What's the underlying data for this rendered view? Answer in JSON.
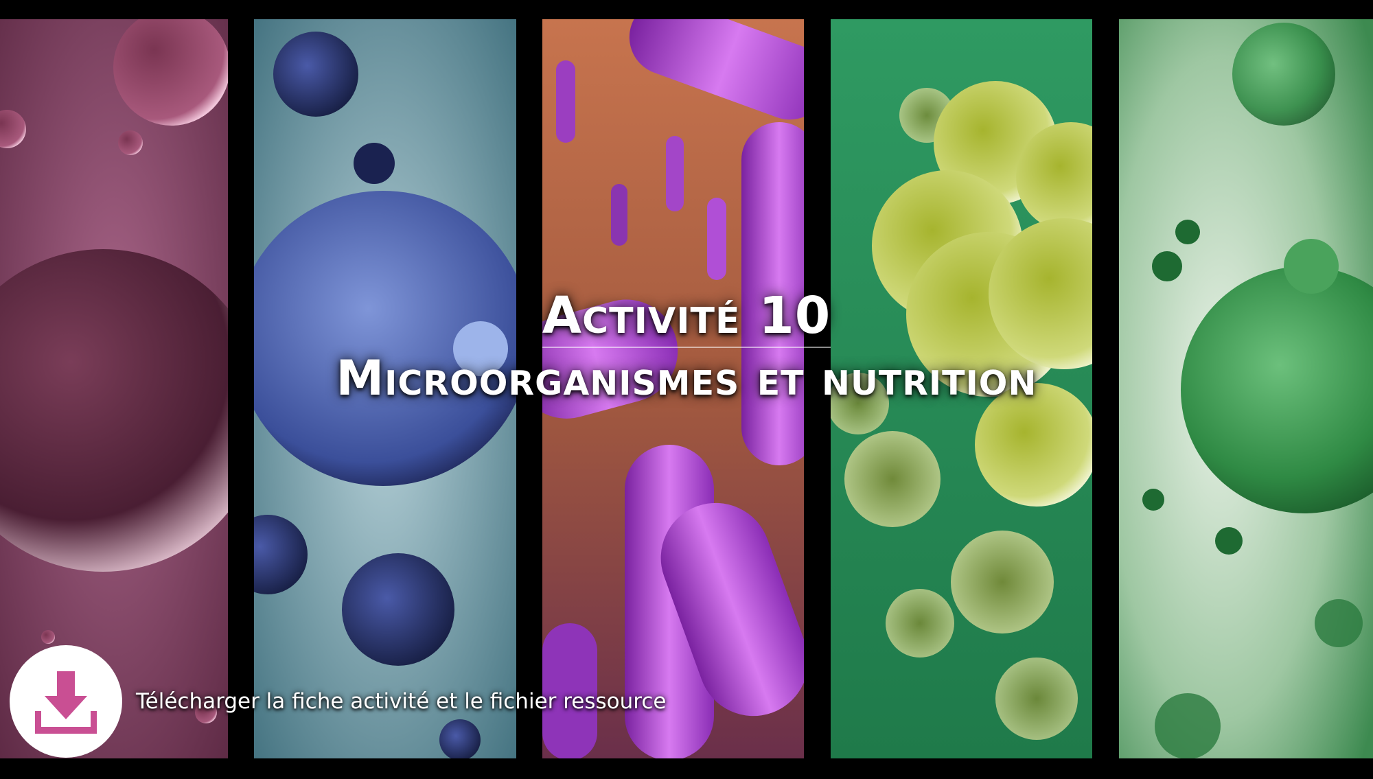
{
  "title": {
    "line1": "Activité 10",
    "line2": "Microorganismes et nutrition"
  },
  "download": {
    "icon": "download-icon",
    "label": "Télécharger la fiche activité et le fichier ressource",
    "icon_color": "#c94f93"
  },
  "panels": [
    {
      "subject": "pink-cell-micrograph",
      "color": "#a0507a"
    },
    {
      "subject": "blue-virus-micrograph",
      "color": "#4f6fb8"
    },
    {
      "subject": "purple-bacteria-micrograph",
      "color": "#b24ad0"
    },
    {
      "subject": "green-yeast-micrograph",
      "color": "#a8bb3c"
    },
    {
      "subject": "green-virus-micrograph",
      "color": "#3e8a4c"
    }
  ]
}
